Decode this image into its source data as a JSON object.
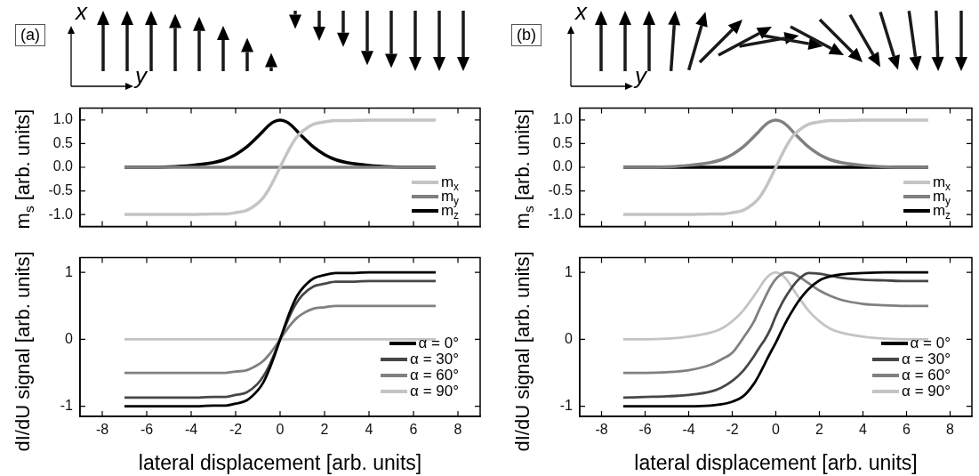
{
  "chart_data": [
    {
      "type": "line",
      "ylabel": "m$_{s}$ [arb. units]",
      "annotations": [
        "(a)",
        "x",
        "y"
      ],
      "x": [
        -7,
        -6,
        -5,
        -4,
        -3,
        -2.5,
        -2,
        -1.5,
        -1,
        -0.75,
        -0.5,
        -0.25,
        0,
        0.25,
        0.5,
        0.75,
        1,
        1.5,
        2,
        2.5,
        3,
        4,
        5,
        6,
        7
      ],
      "xlim": [
        -9,
        9
      ],
      "xticks": [
        -8,
        -6,
        -4,
        -2,
        0,
        2,
        4,
        6,
        8
      ],
      "ylim": [
        -1.25,
        1.25
      ],
      "yticks": [
        {
          "value": -1,
          "label": "-1.0"
        },
        {
          "value": -0.5,
          "label": "-0.5"
        },
        {
          "value": 0,
          "label": "0.0"
        },
        {
          "value": 0.5,
          "label": "0.5"
        },
        {
          "value": 1,
          "label": "1.0"
        }
      ],
      "tick_labels": "y",
      "legend": "bottom right",
      "marker": "none",
      "series": [
        {
          "name": "m$_{x}$",
          "color": "#c4c4c4",
          "values": [
            -1,
            -1,
            -1,
            -1,
            -0.99,
            -0.99,
            -0.96,
            -0.91,
            -0.76,
            -0.64,
            -0.46,
            -0.24,
            0,
            0.24,
            0.46,
            0.64,
            0.76,
            0.91,
            0.96,
            0.99,
            0.99,
            1,
            1,
            1,
            1
          ]
        },
        {
          "name": "m$_{y}$",
          "color": "#808080",
          "values": [
            0,
            0,
            0,
            0,
            0,
            0,
            0,
            0,
            0,
            0,
            0,
            0,
            0,
            0,
            0,
            0,
            0,
            0,
            0,
            0,
            0,
            0,
            0,
            0,
            0
          ]
        },
        {
          "name": "m$_{z}$",
          "color": "#000000",
          "values": [
            0,
            0,
            0.01,
            0.04,
            0.1,
            0.16,
            0.27,
            0.43,
            0.65,
            0.77,
            0.89,
            0.97,
            1,
            0.97,
            0.89,
            0.77,
            0.65,
            0.43,
            0.27,
            0.16,
            0.1,
            0.04,
            0.01,
            0,
            0
          ]
        }
      ]
    },
    {
      "type": "line",
      "ylabel": "m$_{s}$ [arb. units]",
      "annotations": [
        "(b)",
        "x",
        "y"
      ],
      "x": [
        -7,
        -6,
        -5,
        -4,
        -3,
        -2.5,
        -2,
        -1.5,
        -1,
        -0.75,
        -0.5,
        -0.25,
        0,
        0.25,
        0.5,
        0.75,
        1,
        1.5,
        2,
        2.5,
        3,
        4,
        5,
        6,
        7
      ],
      "xlim": [
        -9,
        9
      ],
      "xticks": [
        -8,
        -6,
        -4,
        -2,
        0,
        2,
        4,
        6,
        8
      ],
      "ylim": [
        -1.25,
        1.25
      ],
      "yticks": [
        {
          "value": -1,
          "label": "-1.0"
        },
        {
          "value": -0.5,
          "label": "-0.5"
        },
        {
          "value": 0,
          "label": "0.0"
        },
        {
          "value": 0.5,
          "label": "0.5"
        },
        {
          "value": 1,
          "label": "1.0"
        }
      ],
      "tick_labels": "y",
      "legend": "bottom right",
      "marker": "none",
      "series": [
        {
          "name": "m$_{x}$",
          "color": "#c4c4c4",
          "values": [
            -1,
            -1,
            -1,
            -1,
            -0.99,
            -0.99,
            -0.96,
            -0.91,
            -0.76,
            -0.64,
            -0.46,
            -0.24,
            0,
            0.24,
            0.46,
            0.64,
            0.76,
            0.91,
            0.96,
            0.99,
            0.99,
            1,
            1,
            1,
            1
          ]
        },
        {
          "name": "m$_{y}$",
          "color": "#808080",
          "values": [
            0,
            0,
            0.01,
            0.04,
            0.1,
            0.16,
            0.27,
            0.43,
            0.65,
            0.77,
            0.89,
            0.97,
            1,
            0.97,
            0.89,
            0.77,
            0.65,
            0.43,
            0.27,
            0.16,
            0.1,
            0.04,
            0.01,
            0,
            0
          ]
        },
        {
          "name": "m$_{z}$",
          "color": "#000000",
          "values": [
            0,
            0,
            0,
            0,
            0,
            0,
            0,
            0,
            0,
            0,
            0,
            0,
            0,
            0,
            0,
            0,
            0,
            0,
            0,
            0,
            0,
            0,
            0,
            0,
            0
          ]
        }
      ]
    },
    {
      "type": "line",
      "xlabel": "lateral displacement [arb. units]",
      "ylabel": "dI/dU signal [arb. units]",
      "x": [
        -7,
        -6,
        -5,
        -4,
        -3,
        -2.5,
        -2,
        -1.5,
        -1,
        -0.75,
        -0.5,
        -0.25,
        0,
        0.25,
        0.5,
        0.75,
        1,
        1.5,
        2,
        2.5,
        3,
        4,
        5,
        6,
        7
      ],
      "xlim": [
        -9,
        9
      ],
      "xticks": [
        -8,
        -6,
        -4,
        -2,
        0,
        2,
        4,
        6,
        8
      ],
      "ylim": [
        -1.15,
        1.22
      ],
      "yticks": [
        -1,
        0,
        1
      ],
      "legend": "bottom right",
      "marker": "none",
      "series": [
        {
          "name": "α = 0°",
          "color": "#000000",
          "values": [
            -1,
            -1,
            -1,
            -1,
            -0.99,
            -0.99,
            -0.96,
            -0.91,
            -0.76,
            -0.64,
            -0.46,
            -0.24,
            0,
            0.24,
            0.46,
            0.64,
            0.76,
            0.91,
            0.96,
            0.99,
            0.99,
            1,
            1,
            1,
            1
          ]
        },
        {
          "name": "α = 30°",
          "color": "#474747",
          "values": [
            -0.87,
            -0.87,
            -0.87,
            -0.87,
            -0.86,
            -0.86,
            -0.83,
            -0.79,
            -0.66,
            -0.55,
            -0.4,
            -0.21,
            0,
            0.21,
            0.4,
            0.55,
            0.66,
            0.79,
            0.83,
            0.86,
            0.86,
            0.87,
            0.87,
            0.87,
            0.87
          ]
        },
        {
          "name": "α = 60°",
          "color": "#808080",
          "values": [
            -0.5,
            -0.5,
            -0.5,
            -0.5,
            -0.5,
            -0.5,
            -0.48,
            -0.46,
            -0.38,
            -0.32,
            -0.23,
            -0.12,
            0,
            0.12,
            0.23,
            0.32,
            0.38,
            0.46,
            0.48,
            0.5,
            0.5,
            0.5,
            0.5,
            0.5,
            0.5
          ]
        },
        {
          "name": "α = 90°",
          "color": "#c4c4c4",
          "values": [
            0,
            0,
            0,
            0,
            0,
            0,
            0,
            0,
            0,
            0,
            0,
            0,
            0,
            0,
            0,
            0,
            0,
            0,
            0,
            0,
            0,
            0,
            0,
            0,
            0
          ]
        }
      ]
    },
    {
      "type": "line",
      "xlabel": "lateral displacement [arb. units]",
      "ylabel": "dI/dU signal [arb. units]",
      "x": [
        -7,
        -6,
        -5,
        -4,
        -3,
        -2.5,
        -2,
        -1.5,
        -1,
        -0.75,
        -0.5,
        -0.25,
        0,
        0.25,
        0.5,
        0.75,
        1,
        1.5,
        2,
        2.5,
        3,
        4,
        5,
        6,
        7
      ],
      "xlim": [
        -9,
        9
      ],
      "xticks": [
        -8,
        -6,
        -4,
        -2,
        0,
        2,
        4,
        6,
        8
      ],
      "ylim": [
        -1.15,
        1.22
      ],
      "yticks": [
        -1,
        0,
        1
      ],
      "legend": "bottom right",
      "marker": "none",
      "series": [
        {
          "name": "α = 0°",
          "color": "#000000",
          "values": [
            -1,
            -1,
            -1,
            -1,
            -0.99,
            -0.97,
            -0.93,
            -0.85,
            -0.66,
            -0.52,
            -0.36,
            -0.2,
            -0.05,
            0.12,
            0.28,
            0.42,
            0.55,
            0.75,
            0.88,
            0.94,
            0.97,
            0.99,
            1,
            1,
            1
          ]
        },
        {
          "name": "α = 30°",
          "color": "#474747",
          "values": [
            -0.87,
            -0.86,
            -0.85,
            -0.83,
            -0.78,
            -0.72,
            -0.62,
            -0.47,
            -0.25,
            -0.12,
            0,
            0.15,
            0.35,
            0.52,
            0.66,
            0.78,
            0.88,
            0.99,
            0.98,
            0.95,
            0.92,
            0.89,
            0.88,
            0.87,
            0.87
          ]
        },
        {
          "name": "α = 60°",
          "color": "#808080",
          "values": [
            -0.5,
            -0.5,
            -0.49,
            -0.46,
            -0.38,
            -0.3,
            -0.2,
            0.02,
            0.27,
            0.45,
            0.62,
            0.78,
            0.9,
            0.97,
            1,
            0.99,
            0.95,
            0.84,
            0.73,
            0.65,
            0.59,
            0.53,
            0.51,
            0.5,
            0.5
          ]
        },
        {
          "name": "α = 90°",
          "color": "#c4c4c4",
          "values": [
            0,
            0,
            0.01,
            0.04,
            0.1,
            0.16,
            0.27,
            0.43,
            0.65,
            0.77,
            0.89,
            0.97,
            1,
            0.97,
            0.89,
            0.77,
            0.65,
            0.43,
            0.27,
            0.16,
            0.1,
            0.04,
            0.01,
            0,
            0
          ]
        }
      ]
    }
  ]
}
